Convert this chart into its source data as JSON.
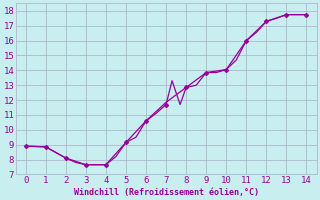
{
  "xlabel": "Windchill (Refroidissement éolien,°C)",
  "background_color": "#c8eef0",
  "grid_color": "#b0b8cc",
  "line_color": "#990099",
  "xlim": [
    -0.5,
    14.5
  ],
  "ylim": [
    7,
    18.5
  ],
  "xticks": [
    0,
    1,
    2,
    3,
    4,
    5,
    6,
    7,
    8,
    9,
    10,
    11,
    12,
    13,
    14
  ],
  "yticks": [
    7,
    8,
    9,
    10,
    11,
    12,
    13,
    14,
    15,
    16,
    17,
    18
  ],
  "jagged_x": [
    0,
    1,
    2,
    2.5,
    3,
    3.5,
    4,
    4.5,
    5,
    5.5,
    6,
    6.5,
    7,
    7.3,
    7.7,
    8,
    8.5,
    9,
    9.5,
    10,
    10.5,
    11,
    11.5,
    12,
    12.5,
    13,
    13.5,
    14
  ],
  "jagged_y": [
    8.9,
    8.85,
    8.1,
    7.8,
    7.65,
    7.65,
    7.65,
    8.2,
    9.15,
    9.5,
    10.6,
    11.1,
    11.7,
    13.3,
    11.7,
    12.85,
    13.0,
    13.85,
    13.85,
    14.05,
    14.7,
    16.0,
    16.55,
    17.3,
    17.5,
    17.75,
    17.75,
    17.75
  ],
  "trend_x": [
    0,
    1,
    2,
    3,
    4,
    5,
    6,
    7,
    8,
    9,
    10,
    11,
    12,
    13,
    14
  ],
  "trend_y": [
    8.9,
    8.85,
    8.1,
    7.65,
    7.65,
    9.15,
    10.6,
    11.85,
    12.85,
    13.85,
    14.05,
    16.0,
    17.3,
    17.75,
    17.75
  ],
  "marker_x": [
    0,
    1,
    2,
    3,
    4,
    5,
    6,
    7,
    8,
    9,
    10,
    11,
    12,
    13,
    14
  ],
  "marker_y": [
    8.9,
    8.85,
    8.1,
    7.65,
    7.65,
    9.15,
    10.6,
    11.7,
    12.85,
    13.85,
    14.05,
    16.0,
    17.3,
    17.75,
    17.75
  ]
}
